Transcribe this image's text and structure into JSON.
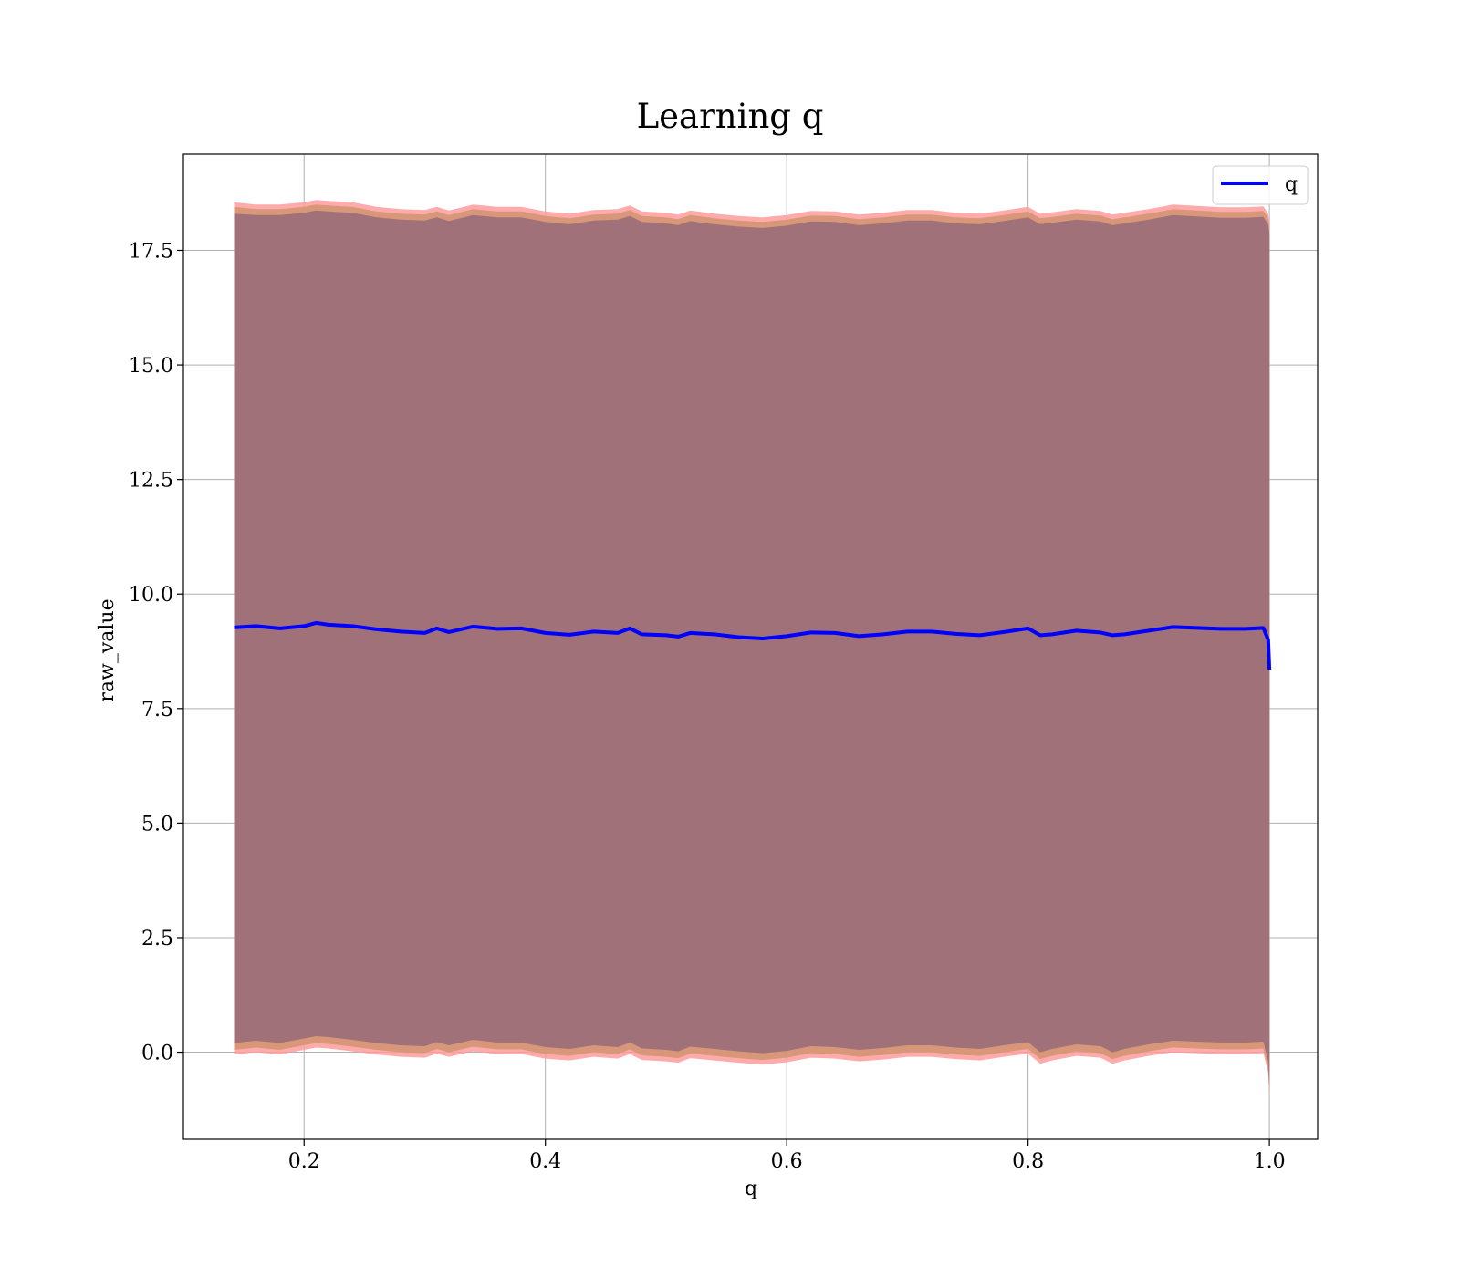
{
  "chart_data": {
    "type": "line",
    "title": "Learning q",
    "xlabel": "q",
    "ylabel": "raw_value",
    "xlim": [
      0.1,
      1.04
    ],
    "ylim": [
      -1.9,
      19.6
    ],
    "grid": true,
    "legend_position": "upper right",
    "x_ticks": [
      "0.2",
      "0.4",
      "0.6",
      "0.8",
      "1.0"
    ],
    "x_tick_values": [
      0.2,
      0.4,
      0.6,
      0.8,
      1.0
    ],
    "y_ticks": [
      "0.0",
      "2.5",
      "5.0",
      "7.5",
      "10.0",
      "12.5",
      "15.0",
      "17.5"
    ],
    "y_tick_values": [
      0.0,
      2.5,
      5.0,
      7.5,
      10.0,
      12.5,
      15.0,
      17.5
    ],
    "colors": {
      "line": "#0000ff",
      "outer_band": "#ff9c9c",
      "middle_band": "#d49573",
      "inner_band": "#a1717a"
    },
    "series": [
      {
        "name": "q",
        "x": [
          0.142,
          0.16,
          0.18,
          0.2,
          0.21,
          0.22,
          0.24,
          0.26,
          0.28,
          0.3,
          0.31,
          0.32,
          0.34,
          0.36,
          0.38,
          0.4,
          0.42,
          0.44,
          0.46,
          0.47,
          0.48,
          0.5,
          0.51,
          0.52,
          0.54,
          0.56,
          0.58,
          0.6,
          0.62,
          0.64,
          0.66,
          0.68,
          0.7,
          0.72,
          0.74,
          0.76,
          0.78,
          0.8,
          0.81,
          0.82,
          0.84,
          0.86,
          0.87,
          0.88,
          0.9,
          0.92,
          0.94,
          0.96,
          0.98,
          0.995,
          0.999,
          1.0
        ],
        "y": [
          9.27,
          9.3,
          9.25,
          9.3,
          9.37,
          9.33,
          9.3,
          9.23,
          9.18,
          9.15,
          9.25,
          9.17,
          9.29,
          9.24,
          9.25,
          9.15,
          9.11,
          9.18,
          9.15,
          9.25,
          9.12,
          9.1,
          9.07,
          9.15,
          9.12,
          9.06,
          9.03,
          9.08,
          9.16,
          9.15,
          9.08,
          9.12,
          9.18,
          9.18,
          9.13,
          9.1,
          9.17,
          9.25,
          9.1,
          9.12,
          9.2,
          9.16,
          9.1,
          9.12,
          9.2,
          9.28,
          9.26,
          9.24,
          9.24,
          9.26,
          9.0,
          8.35
        ],
        "band_outer_upper": [
          18.55,
          18.5,
          18.5,
          18.55,
          18.6,
          18.58,
          18.55,
          18.45,
          18.4,
          18.38,
          18.45,
          18.37,
          18.5,
          18.45,
          18.45,
          18.35,
          18.3,
          18.38,
          18.4,
          18.48,
          18.35,
          18.32,
          18.28,
          18.37,
          18.3,
          18.25,
          18.22,
          18.27,
          18.36,
          18.35,
          18.28,
          18.32,
          18.38,
          18.38,
          18.32,
          18.3,
          18.37,
          18.45,
          18.3,
          18.33,
          18.4,
          18.36,
          18.28,
          18.32,
          18.4,
          18.5,
          18.47,
          18.44,
          18.44,
          18.46,
          18.3,
          18.1
        ],
        "band_outer_lower": [
          -0.05,
          0.0,
          -0.05,
          0.05,
          0.1,
          0.08,
          0.02,
          -0.05,
          -0.1,
          -0.12,
          -0.03,
          -0.1,
          0.02,
          -0.04,
          -0.04,
          -0.14,
          -0.18,
          -0.1,
          -0.14,
          -0.04,
          -0.17,
          -0.2,
          -0.23,
          -0.13,
          -0.18,
          -0.23,
          -0.27,
          -0.22,
          -0.12,
          -0.14,
          -0.2,
          -0.16,
          -0.1,
          -0.1,
          -0.15,
          -0.18,
          -0.1,
          -0.03,
          -0.25,
          -0.18,
          -0.08,
          -0.12,
          -0.25,
          -0.18,
          -0.08,
          0.0,
          -0.02,
          -0.04,
          -0.04,
          -0.02,
          -0.45,
          -1.0
        ],
        "band_middle_upper": [
          18.45,
          18.4,
          18.4,
          18.45,
          18.5,
          18.48,
          18.45,
          18.35,
          18.3,
          18.28,
          18.35,
          18.27,
          18.4,
          18.35,
          18.35,
          18.25,
          18.2,
          18.28,
          18.3,
          18.38,
          18.25,
          18.22,
          18.18,
          18.27,
          18.2,
          18.15,
          18.12,
          18.17,
          18.26,
          18.25,
          18.18,
          18.22,
          18.28,
          18.28,
          18.22,
          18.2,
          18.27,
          18.35,
          18.2,
          18.23,
          18.3,
          18.26,
          18.18,
          18.22,
          18.3,
          18.4,
          18.37,
          18.34,
          18.34,
          18.36,
          18.2,
          18.0
        ],
        "band_middle_lower": [
          0.05,
          0.1,
          0.05,
          0.15,
          0.2,
          0.18,
          0.12,
          0.05,
          0.0,
          -0.02,
          0.07,
          0.0,
          0.12,
          0.06,
          0.06,
          -0.04,
          -0.08,
          0.0,
          -0.04,
          0.06,
          -0.07,
          -0.1,
          -0.13,
          -0.03,
          -0.08,
          -0.13,
          -0.17,
          -0.12,
          -0.02,
          -0.04,
          -0.1,
          -0.06,
          0.0,
          0.0,
          -0.05,
          -0.08,
          0.0,
          0.07,
          -0.15,
          -0.08,
          0.02,
          -0.02,
          -0.15,
          -0.08,
          0.02,
          0.1,
          0.08,
          0.06,
          0.06,
          0.08,
          -0.35,
          -0.9
        ],
        "band_inner_upper": [
          18.3,
          18.27,
          18.27,
          18.32,
          18.37,
          18.35,
          18.32,
          18.22,
          18.17,
          18.15,
          18.22,
          18.14,
          18.27,
          18.22,
          18.22,
          18.12,
          18.07,
          18.15,
          18.17,
          18.25,
          18.12,
          18.09,
          18.05,
          18.14,
          18.07,
          18.02,
          17.99,
          18.04,
          18.13,
          18.12,
          18.05,
          18.09,
          18.15,
          18.15,
          18.09,
          18.07,
          18.14,
          18.22,
          18.07,
          18.1,
          18.17,
          18.13,
          18.05,
          18.09,
          18.17,
          18.27,
          18.24,
          18.21,
          18.21,
          18.23,
          18.07,
          17.87
        ],
        "band_inner_lower": [
          0.2,
          0.25,
          0.2,
          0.3,
          0.35,
          0.33,
          0.27,
          0.2,
          0.15,
          0.13,
          0.22,
          0.15,
          0.27,
          0.21,
          0.21,
          0.11,
          0.07,
          0.15,
          0.11,
          0.21,
          0.08,
          0.05,
          0.02,
          0.12,
          0.07,
          0.02,
          -0.02,
          0.03,
          0.13,
          0.11,
          0.05,
          0.09,
          0.15,
          0.15,
          0.1,
          0.07,
          0.15,
          0.22,
          0.0,
          0.07,
          0.17,
          0.13,
          0.0,
          0.07,
          0.17,
          0.25,
          0.23,
          0.21,
          0.21,
          0.23,
          -0.2,
          -0.75
        ]
      }
    ]
  }
}
